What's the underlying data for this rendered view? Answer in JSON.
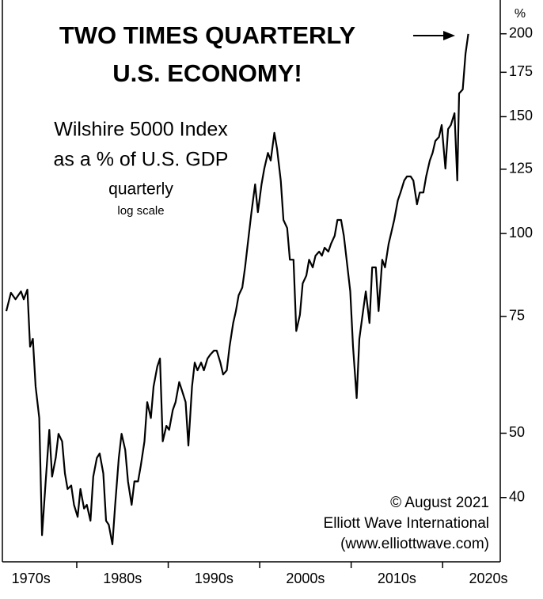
{
  "chart_data": {
    "type": "line",
    "title": [
      "TWO TIMES QUARTERLY",
      "U.S. ECONOMY!"
    ],
    "subtitle": [
      "Wilshire 5000 Index",
      "as a % of U.S. GDP",
      "quarterly",
      "log scale"
    ],
    "credits": [
      "© August 2021",
      "Elliott Wave International",
      "(www.elliottwave.com)"
    ],
    "y_unit": "%",
    "color": "#000000",
    "log_scale": true,
    "xlim": [
      1972.3,
      2026.3
    ],
    "xticks": [
      1980,
      1990,
      2000,
      2010,
      2020
    ],
    "xlabels": [
      {
        "value": 1975,
        "label": "1970s"
      },
      {
        "value": 1985,
        "label": "1980s"
      },
      {
        "value": 1995,
        "label": "1990s"
      },
      {
        "value": 2005,
        "label": "2000s"
      },
      {
        "value": 2015,
        "label": "2010s"
      },
      {
        "value": 2025,
        "label": "2020s"
      }
    ],
    "ylim": [
      32,
      220
    ],
    "yticks": [
      40,
      50,
      75,
      100,
      125,
      150,
      175,
      200
    ],
    "x": [
      1972.3,
      1972.8,
      1973.3,
      1973.9,
      1974.2,
      1974.6,
      1974.9,
      1975.2,
      1975.5,
      1975.9,
      1976.2,
      1976.6,
      1977.0,
      1977.3,
      1977.7,
      1978.0,
      1978.4,
      1978.7,
      1979.0,
      1979.4,
      1979.7,
      1980.1,
      1980.4,
      1980.8,
      1981.1,
      1981.5,
      1981.8,
      1982.2,
      1982.5,
      1982.9,
      1983.2,
      1983.5,
      1983.9,
      1984.2,
      1984.6,
      1984.9,
      1985.3,
      1985.6,
      1986.0,
      1986.3,
      1986.7,
      1987.0,
      1987.4,
      1987.7,
      1988.1,
      1988.4,
      1988.8,
      1989.1,
      1989.4,
      1989.8,
      1990.1,
      1990.5,
      1990.8,
      1991.2,
      1991.5,
      1991.9,
      1992.2,
      1992.6,
      1992.9,
      1993.2,
      1993.6,
      1993.9,
      1994.3,
      1994.6,
      1995.0,
      1995.3,
      1995.7,
      1996.0,
      1996.4,
      1996.7,
      1997.1,
      1997.4,
      1997.7,
      1998.1,
      1998.4,
      1998.8,
      1999.1,
      1999.5,
      1999.8,
      2000.2,
      2000.5,
      2000.9,
      2001.2,
      2001.6,
      2001.9,
      2002.3,
      2002.6,
      2003.0,
      2003.3,
      2003.7,
      2004.0,
      2004.4,
      2004.7,
      2005.1,
      2005.4,
      2005.8,
      2006.1,
      2006.5,
      2006.8,
      2007.1,
      2007.5,
      2007.8,
      2008.2,
      2008.5,
      2008.9,
      2009.2,
      2009.5,
      2009.9,
      2010.2,
      2010.6,
      2010.9,
      2011.3,
      2011.6,
      2012.0,
      2012.3,
      2012.7,
      2013.0,
      2013.4,
      2013.7,
      2014.1,
      2014.4,
      2014.7,
      2015.1,
      2015.4,
      2015.8,
      2016.1,
      2016.5,
      2016.8,
      2017.2,
      2017.5,
      2017.9,
      2018.2,
      2018.6,
      2018.9,
      2019.2,
      2019.6,
      2019.9,
      2020.3,
      2020.6,
      2020.9,
      2021.3,
      2021.6,
      2021.8,
      2022.2,
      2022.5,
      2022.8
    ],
    "values": [
      76.4,
      81.4,
      79.6,
      81.8,
      79.6,
      82.3,
      67.5,
      69.4,
      58.8,
      52.7,
      35.1,
      42.3,
      50.6,
      43.0,
      45.9,
      49.9,
      48.6,
      43.5,
      41.2,
      41.7,
      39.0,
      37.4,
      41.2,
      38.5,
      39.0,
      36.9,
      43.0,
      45.9,
      46.6,
      43.5,
      36.9,
      36.4,
      34.0,
      39.0,
      45.9,
      49.9,
      47.2,
      42.3,
      39.0,
      42.3,
      42.3,
      44.7,
      48.6,
      55.7,
      52.7,
      58.8,
      63.0,
      64.8,
      48.6,
      51.3,
      50.6,
      54.2,
      55.7,
      59.7,
      58.0,
      55.7,
      47.9,
      58.8,
      63.9,
      62.2,
      63.9,
      62.2,
      64.8,
      65.7,
      66.6,
      66.6,
      63.9,
      61.3,
      62.2,
      67.5,
      73.3,
      76.4,
      80.7,
      82.9,
      88.9,
      99.2,
      107.7,
      118.6,
      107.7,
      118.6,
      125.3,
      132.3,
      128.8,
      141.8,
      134.2,
      120.2,
      104.8,
      101.9,
      91.3,
      91.3,
      71.3,
      75.4,
      84.1,
      86.4,
      91.3,
      88.9,
      92.6,
      93.9,
      92.6,
      95.2,
      93.9,
      96.5,
      99.2,
      104.8,
      104.8,
      99.2,
      91.3,
      81.8,
      67.5,
      56.5,
      69.4,
      76.4,
      81.8,
      73.3,
      88.9,
      88.9,
      76.4,
      91.3,
      88.9,
      96.5,
      100.5,
      104.8,
      112.2,
      115.3,
      120.2,
      121.9,
      121.9,
      120.2,
      110.7,
      115.3,
      115.3,
      121.9,
      128.8,
      132.3,
      137.9,
      139.8,
      145.7,
      125.3,
      143.7,
      145.7,
      151.8,
      120.2,
      162.6,
      164.9,
      186.6,
      199.9
    ]
  }
}
